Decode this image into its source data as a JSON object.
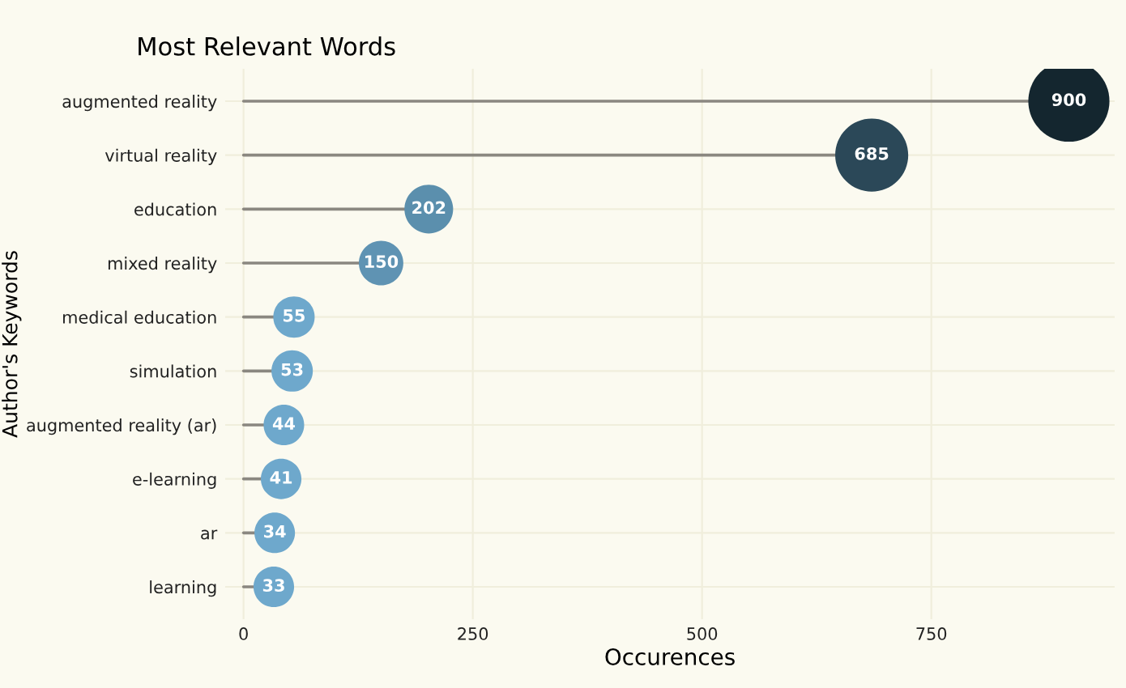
{
  "chart_data": {
    "type": "lollipop",
    "title": "Most Relevant Words",
    "xlabel": "Occurences",
    "ylabel": "Author's Keywords",
    "orientation": "horizontal",
    "categories": [
      "augmented reality",
      "virtual reality",
      "education",
      "mixed reality",
      "medical education",
      "simulation",
      "augmented reality (ar)",
      "e-learning",
      "ar",
      "learning"
    ],
    "values": [
      900,
      685,
      202,
      150,
      55,
      53,
      44,
      41,
      34,
      33
    ],
    "sizes": [
      1,
      0.81,
      0.36,
      0.3,
      0.26,
      0.26,
      0.25,
      0.25,
      0.25,
      0.25
    ],
    "colors": [
      "#14262f",
      "#2b4858",
      "#5b8fad",
      "#5f93b3",
      "#6ea8cc",
      "#6ea8cc",
      "#6ea8cc",
      "#6ea8cc",
      "#6ea8cc",
      "#6ea8cc"
    ],
    "xlim": [
      -20,
      950
    ],
    "xticks": [
      0,
      250,
      500,
      750
    ],
    "grid": true,
    "data_labels": true
  }
}
